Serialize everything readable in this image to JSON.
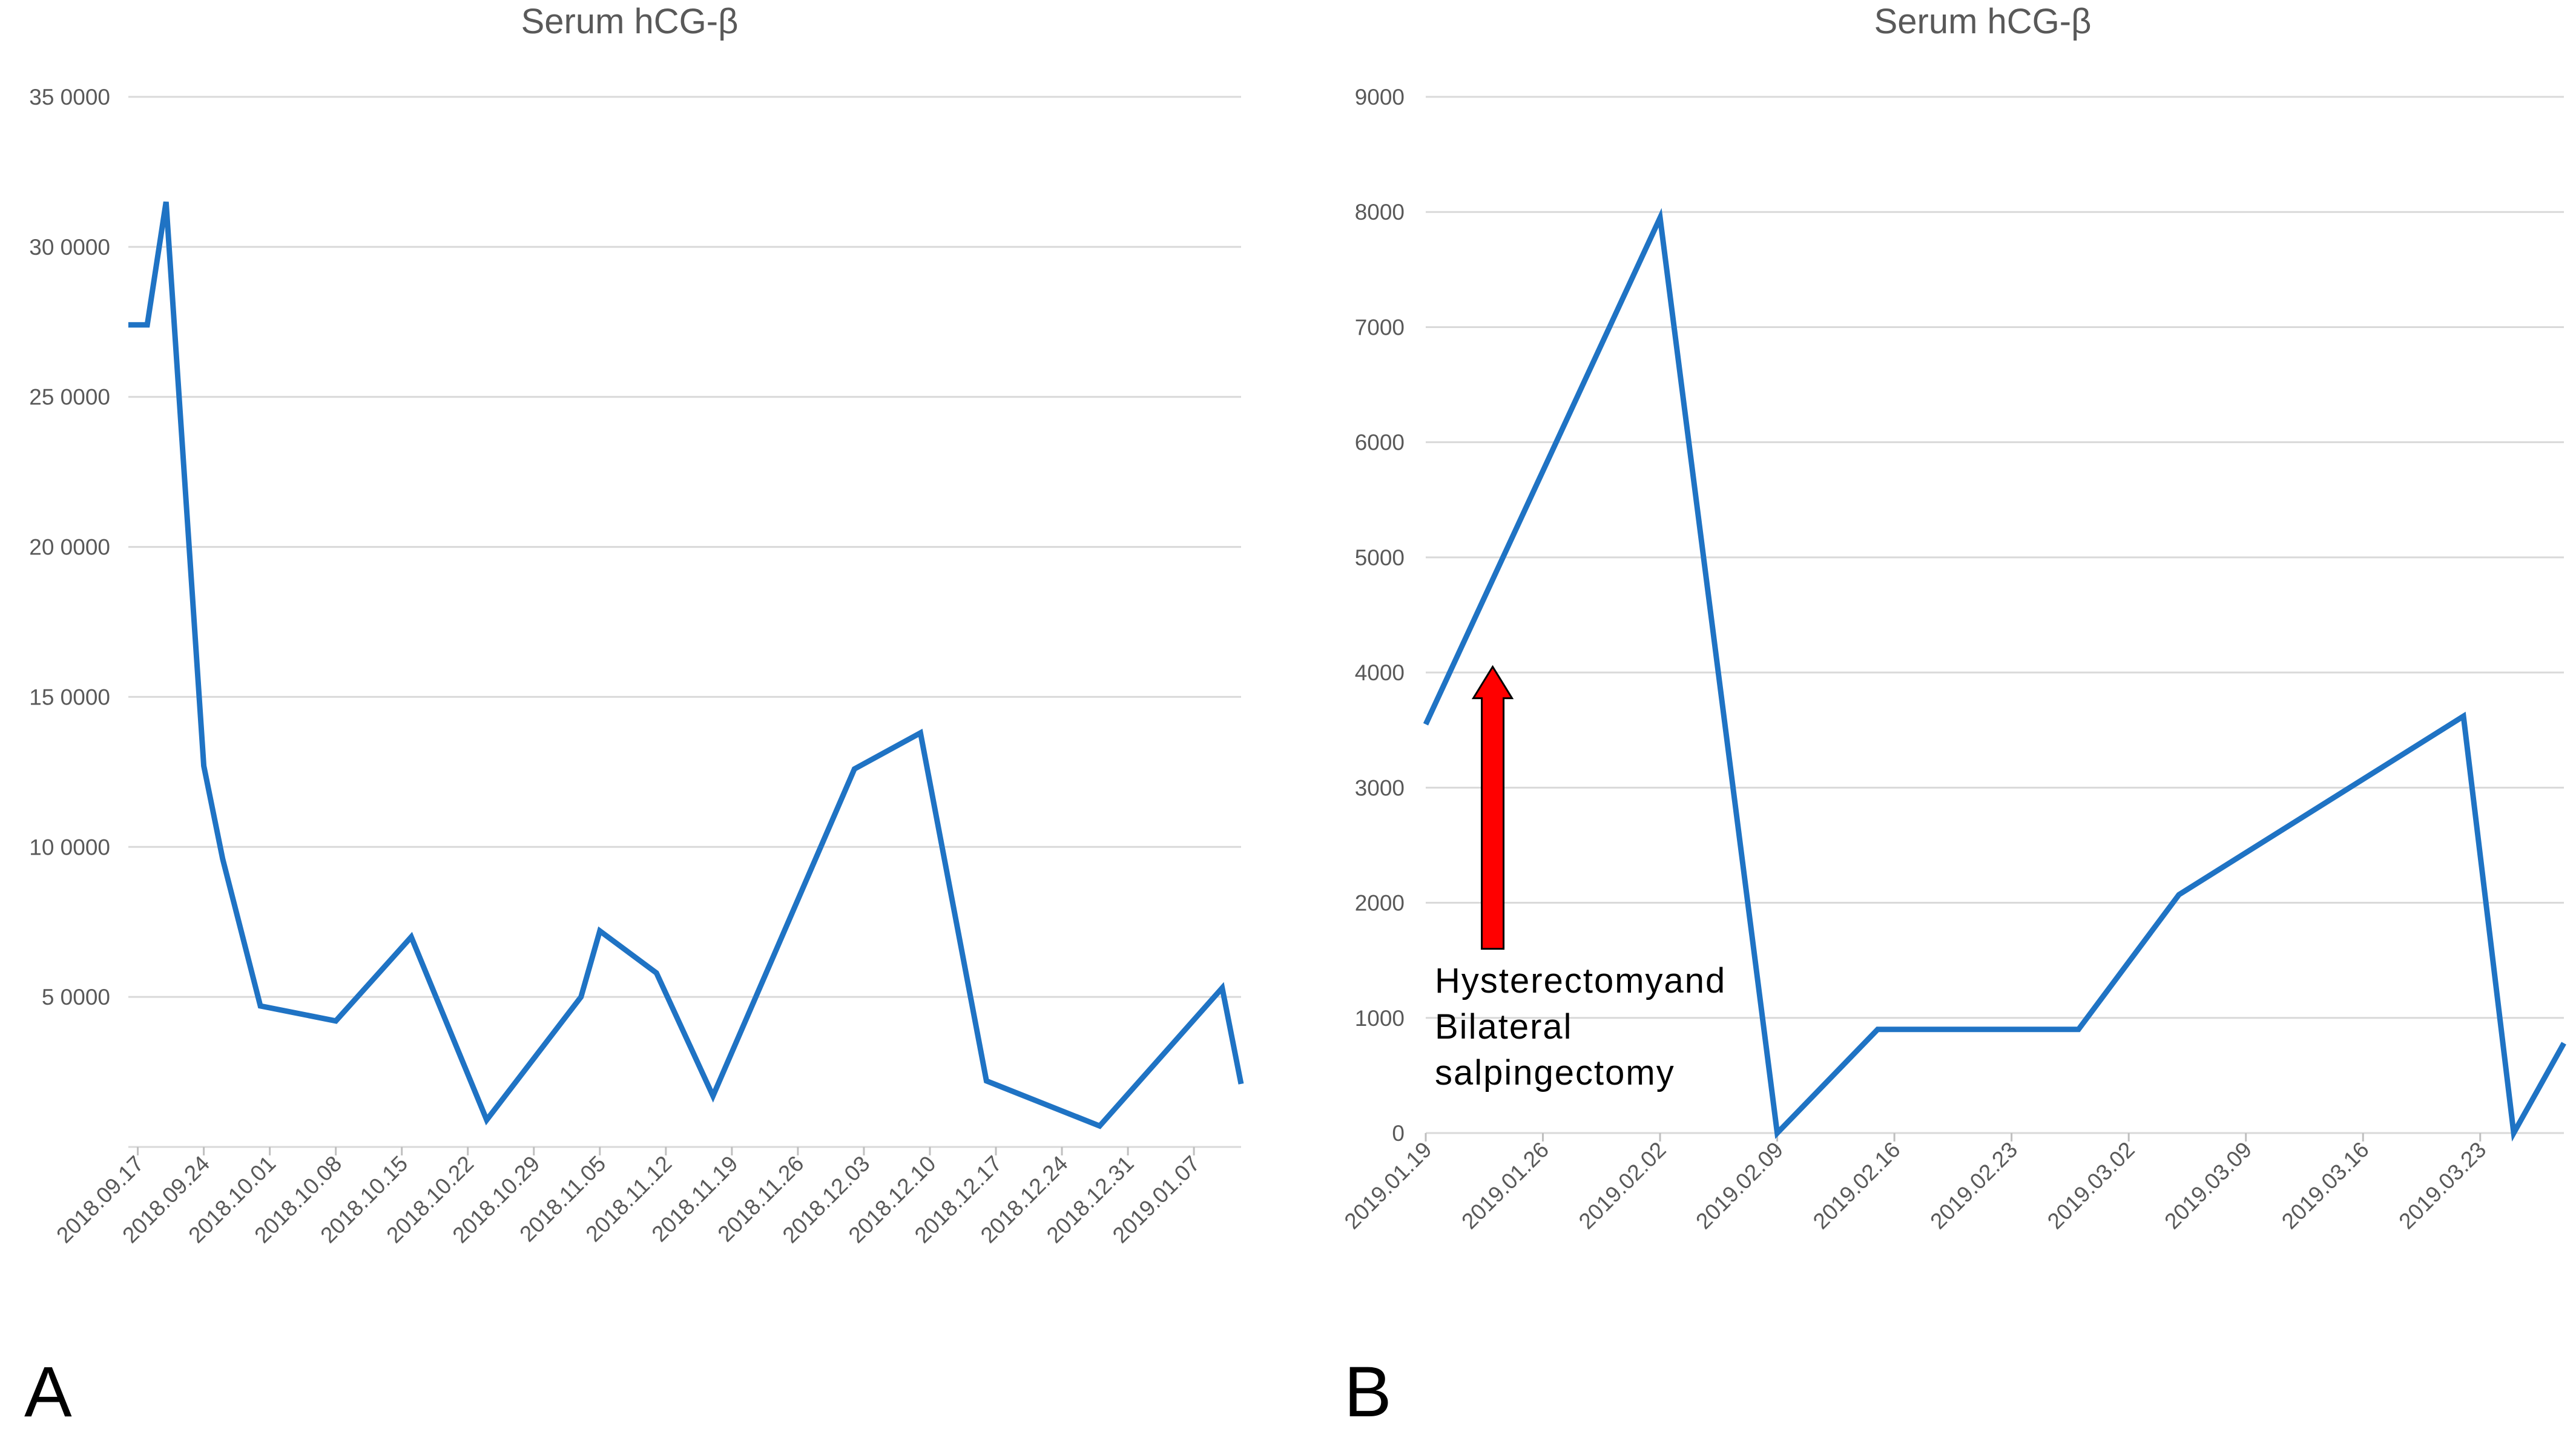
{
  "chart_data": [
    {
      "type": "line",
      "panel_label": "A",
      "title": "Serum hCG-β",
      "xlabel": "",
      "ylabel": "",
      "grid": true,
      "legend": "none",
      "ylim": [
        0,
        350000
      ],
      "yticks": [
        0,
        50000,
        100000,
        150000,
        200000,
        250000,
        300000,
        350000
      ],
      "ytick_labels": [
        "",
        "5 0000",
        "10 0000",
        "15 0000",
        "20 0000",
        "25 0000",
        "30 0000",
        "35 0000"
      ],
      "xlim": [
        "2018-09-16",
        "2019-01-12"
      ],
      "xticks": [
        "2018-09-17",
        "2018-09-24",
        "2018-10-01",
        "2018-10-08",
        "2018-10-15",
        "2018-10-22",
        "2018-10-29",
        "2018-11-05",
        "2018-11-12",
        "2018-11-19",
        "2018-11-26",
        "2018-12-03",
        "2018-12-10",
        "2018-12-17",
        "2018-12-24",
        "2018-12-31",
        "2019-01-07"
      ],
      "xtick_labels": [
        "2018.09.17",
        "2018.09.24",
        "2018.10.01",
        "2018.10.08",
        "2018.10.15",
        "2018.10.22",
        "2018.10.29",
        "2018.11.05",
        "2018.11.12",
        "2018.11.19",
        "2018.11.26",
        "2018.12.03",
        "2018.12.10",
        "2018.12.17",
        "2018.12.24",
        "2018.12.31",
        "2019.01.07"
      ],
      "series": [
        {
          "color": "#1f73c4",
          "x": [
            "2018-09-16",
            "2018-09-18",
            "2018-09-20",
            "2018-09-24",
            "2018-09-26",
            "2018-09-30",
            "2018-10-08",
            "2018-10-16",
            "2018-10-24",
            "2018-11-03",
            "2018-11-05",
            "2018-11-11",
            "2018-11-17",
            "2018-12-02",
            "2018-12-09",
            "2018-12-16",
            "2018-12-28",
            "2019-01-10",
            "2019-01-12"
          ],
          "y": [
            274000,
            274000,
            315000,
            127000,
            96000,
            47000,
            42000,
            70000,
            9000,
            50000,
            72000,
            58000,
            17000,
            126000,
            138000,
            22000,
            7000,
            53000,
            21000
          ]
        }
      ]
    },
    {
      "type": "line",
      "panel_label": "B",
      "title": "Serum hCG-β",
      "xlabel": "",
      "ylabel": "",
      "grid": true,
      "legend": "none",
      "ylim": [
        0,
        9000
      ],
      "yticks": [
        0,
        1000,
        2000,
        3000,
        4000,
        5000,
        6000,
        7000,
        8000,
        9000
      ],
      "ytick_labels": [
        "0",
        "1000",
        "2000",
        "3000",
        "4000",
        "5000",
        "6000",
        "7000",
        "8000",
        "9000"
      ],
      "xlim": [
        "2019-01-19",
        "2019-03-28"
      ],
      "xticks": [
        "2019-01-19",
        "2019-01-26",
        "2019-02-02",
        "2019-02-09",
        "2019-02-16",
        "2019-02-23",
        "2019-03-02",
        "2019-03-09",
        "2019-03-16",
        "2019-03-23"
      ],
      "xtick_labels": [
        "2019.01.19",
        "2019.01.26",
        "2019.02.02",
        "2019.02.09",
        "2019.02.16",
        "2019.02.23",
        "2019.03.02",
        "2019.03.09",
        "2019.03.16",
        "2019.03.23"
      ],
      "annotation": {
        "lines": [
          "Hysterectomyand",
          "Bilateral",
          "salpingectomy"
        ],
        "arrow_color": "#ff0000",
        "arrow_date": "2019-01-23",
        "arrow_from": 1600,
        "arrow_to": 4050
      },
      "series": [
        {
          "color": "#1f73c4",
          "x": [
            "2019-01-19",
            "2019-02-02",
            "2019-02-09",
            "2019-02-15",
            "2019-02-27",
            "2019-03-05",
            "2019-03-22",
            "2019-03-25",
            "2019-03-28"
          ],
          "y": [
            3550,
            7950,
            0,
            900,
            900,
            2070,
            3620,
            0,
            780
          ]
        }
      ]
    }
  ]
}
